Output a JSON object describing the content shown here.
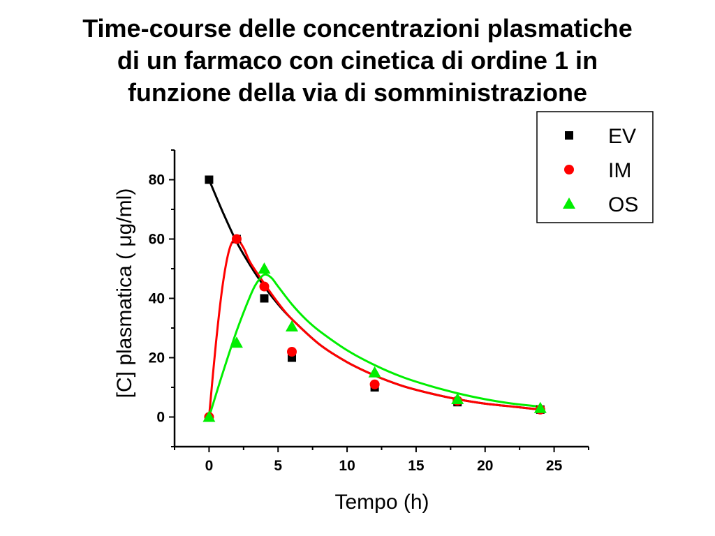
{
  "title_lines": [
    "Time-course delle concentrazioni plasmatiche",
    "di un farmaco con cinetica di ordine 1 in",
    "funzione della via di somministrazione"
  ],
  "chart_data": {
    "type": "scatter",
    "title": "Time-course delle concentrazioni plasmatiche di un farmaco con cinetica di ordine 1 in funzione della via di somministrazione",
    "xlabel": "Tempo (h)",
    "ylabel": "[C] plasmatica  ( μg/ml)",
    "xlim": [
      -2.5,
      27.5
    ],
    "ylim": [
      -10,
      90
    ],
    "x_ticks": [
      0,
      5,
      10,
      15,
      20,
      25
    ],
    "y_ticks": [
      0,
      20,
      40,
      60,
      80
    ],
    "grid": false,
    "legend_position": "top-right",
    "series": [
      {
        "name": "EV",
        "marker": "square",
        "color": "#000000",
        "points": [
          [
            0,
            80
          ],
          [
            2,
            60
          ],
          [
            4,
            40
          ],
          [
            6,
            20
          ],
          [
            12,
            10
          ],
          [
            18,
            5
          ],
          [
            24,
            2.5
          ]
        ],
        "fit_curve": [
          [
            0,
            80
          ],
          [
            1,
            69
          ],
          [
            2,
            59
          ],
          [
            3,
            51
          ],
          [
            4,
            44
          ],
          [
            5,
            38
          ],
          [
            6,
            33
          ],
          [
            8,
            24.5
          ],
          [
            10,
            18.5
          ],
          [
            12,
            14
          ],
          [
            14,
            10.5
          ],
          [
            16,
            8
          ],
          [
            18,
            6
          ],
          [
            20,
            4.5
          ],
          [
            22,
            3.5
          ],
          [
            24,
            2.5
          ]
        ]
      },
      {
        "name": "IM",
        "marker": "circle",
        "color": "#ff0000",
        "points": [
          [
            0,
            0
          ],
          [
            2,
            60
          ],
          [
            4,
            44
          ],
          [
            6,
            22
          ],
          [
            12,
            11
          ],
          [
            18,
            5.5
          ],
          [
            24,
            2.5
          ]
        ],
        "fit_curve": [
          [
            0,
            0
          ],
          [
            0.5,
            25
          ],
          [
            1,
            45
          ],
          [
            1.5,
            57
          ],
          [
            2,
            60
          ],
          [
            2.5,
            57
          ],
          [
            3,
            52
          ],
          [
            4,
            45
          ],
          [
            5,
            38.5
          ],
          [
            6,
            33
          ],
          [
            8,
            24.5
          ],
          [
            10,
            18.5
          ],
          [
            12,
            14
          ],
          [
            14,
            10.5
          ],
          [
            16,
            8
          ],
          [
            18,
            6
          ],
          [
            20,
            4.5
          ],
          [
            22,
            3.5
          ],
          [
            24,
            2.5
          ]
        ]
      },
      {
        "name": "OS",
        "marker": "triangle",
        "color": "#00ee00",
        "points": [
          [
            0,
            0
          ],
          [
            2,
            25
          ],
          [
            4,
            50
          ],
          [
            6,
            30.5
          ],
          [
            12,
            15
          ],
          [
            18,
            6
          ],
          [
            24,
            3
          ]
        ],
        "fit_curve": [
          [
            0,
            0
          ],
          [
            1,
            15
          ],
          [
            2,
            29
          ],
          [
            3,
            41
          ],
          [
            3.5,
            45.5
          ],
          [
            4,
            48
          ],
          [
            4.5,
            47
          ],
          [
            5,
            44
          ],
          [
            6,
            38
          ],
          [
            7,
            33
          ],
          [
            8,
            29
          ],
          [
            10,
            22.5
          ],
          [
            12,
            17.5
          ],
          [
            14,
            13.5
          ],
          [
            16,
            10.5
          ],
          [
            18,
            8
          ],
          [
            20,
            6
          ],
          [
            22,
            4.5
          ],
          [
            24,
            3.5
          ]
        ]
      }
    ]
  }
}
